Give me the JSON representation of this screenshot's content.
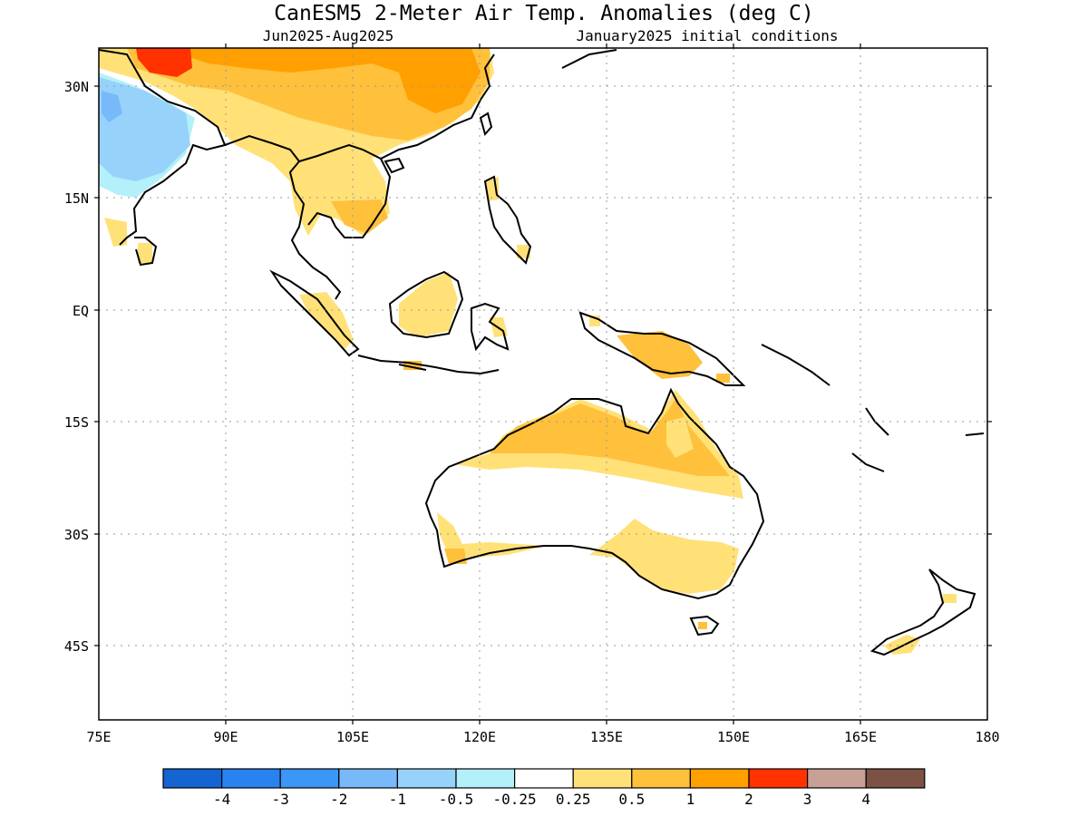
{
  "title": "CanESM5 2-Meter Air Temp. Anomalies (deg C)",
  "subtitle_left": "Jun2025-Aug2025",
  "subtitle_right": "January2025 initial conditions",
  "lat_labels": [
    "30N",
    "15N",
    "EQ",
    "15S",
    "30S",
    "45S"
  ],
  "lon_labels": [
    "75E",
    "90E",
    "105E",
    "120E",
    "135E",
    "150E",
    "165E",
    "180"
  ],
  "colorbar": {
    "colors": [
      "#1464d2",
      "#2882f0",
      "#3c96f5",
      "#78b9fa",
      "#96d2fa",
      "#b4f0fa",
      "#ffffff",
      "#ffe178",
      "#ffc03c",
      "#ffa000",
      "#ff3200",
      "#c8a096",
      "#7b5244"
    ],
    "tick_labels": [
      "-4",
      "-3",
      "-2",
      "-1",
      "-0.5",
      "-0.25",
      "0.25",
      "0.5",
      "1",
      "2",
      "3",
      "4"
    ]
  },
  "colors": {
    "land_outline": "#000000",
    "grid": "#999999",
    "anom_025": "#ffe178",
    "anom_05": "#ffc03c",
    "anom_1": "#ffa000",
    "anom_2": "#ff3200",
    "anom_neg05": "#96d2fa",
    "anom_neg1": "#78b9fa",
    "anom_neg025": "#b4f0fa"
  }
}
